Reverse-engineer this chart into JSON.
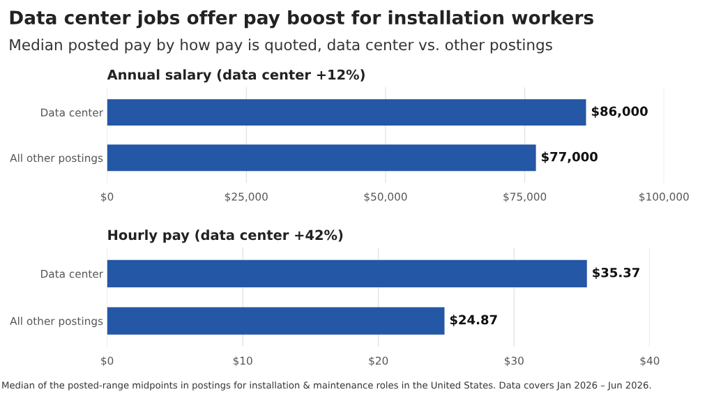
{
  "chart_data": [
    {
      "type": "other",
      "title": "Data center jobs offer pay boost for installation workers",
      "subtitle": "Median posted pay by how pay is quoted, data center vs. other postings"
    },
    {
      "type": "bar",
      "orientation": "horizontal",
      "title": "Annual salary (data center +12%)",
      "categories": [
        "Data center",
        "All other postings"
      ],
      "values": [
        86000,
        77000
      ],
      "value_labels": [
        "$86,000",
        "$77,000"
      ],
      "color": "#2457a5",
      "xlim": [
        0,
        100000
      ],
      "xticks": [
        {
          "value": 0,
          "label": "$0"
        },
        {
          "value": 25000,
          "label": "$25,000"
        },
        {
          "value": 50000,
          "label": "$50,000"
        },
        {
          "value": 75000,
          "label": "$75,000"
        },
        {
          "value": 100000,
          "label": "$100,000"
        }
      ],
      "grid": "x"
    },
    {
      "type": "bar",
      "orientation": "horizontal",
      "title": "Hourly pay (data center +42%)",
      "categories": [
        "Data center",
        "All other postings"
      ],
      "values": [
        35.37,
        24.87
      ],
      "value_labels": [
        "$35.37",
        "$24.87"
      ],
      "color": "#2457a5",
      "xlim": [
        0,
        40
      ],
      "xticks": [
        {
          "value": 0,
          "label": "$0"
        },
        {
          "value": 10,
          "label": "$10"
        },
        {
          "value": 20,
          "label": "$20"
        },
        {
          "value": 30,
          "label": "$30"
        },
        {
          "value": 40,
          "label": "$40"
        }
      ],
      "grid": "x",
      "annotations": [
        "Median of the posted-range midpoints in postings for installation & maintenance roles in the United States. Data covers Jan 2026 – Jun 2026."
      ]
    }
  ]
}
